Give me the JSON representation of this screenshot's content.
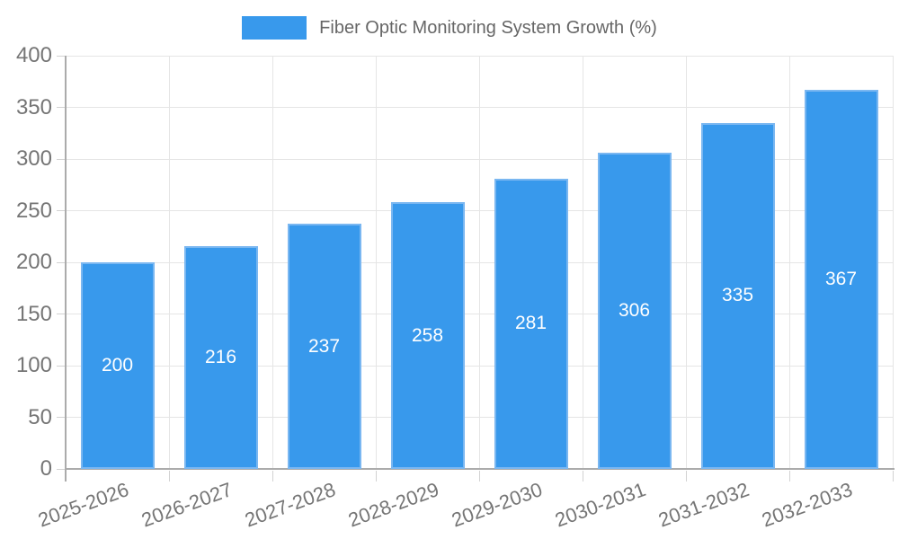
{
  "legend": {
    "label": "Fiber Optic Monitoring System Growth (%)"
  },
  "chart_data": {
    "type": "bar",
    "title": "Fiber Optic Monitoring System Growth (%)",
    "categories": [
      "2025-2026",
      "2026-2027",
      "2027-2028",
      "2028-2029",
      "2029-2030",
      "2030-2031",
      "2031-2032",
      "2032-2033"
    ],
    "values": [
      200,
      216,
      237,
      258,
      281,
      306,
      335,
      367
    ],
    "xlabel": "",
    "ylabel": "",
    "ylim": [
      0,
      400
    ],
    "ytick_step": 50,
    "yticks": [
      0,
      50,
      100,
      150,
      200,
      250,
      300,
      350,
      400
    ],
    "grid": true,
    "legend_position": "top",
    "colors": {
      "bar_fill": "#3899ec",
      "bar_border": "#7ab7f1",
      "value_label": "#ffffff",
      "tick_label": "#757575",
      "legend_text": "#666666",
      "grid_line": "#e5e5e5",
      "axis_line": "#ababab",
      "tick_mark": "#d2d2d2",
      "background": "#ffffff"
    }
  }
}
